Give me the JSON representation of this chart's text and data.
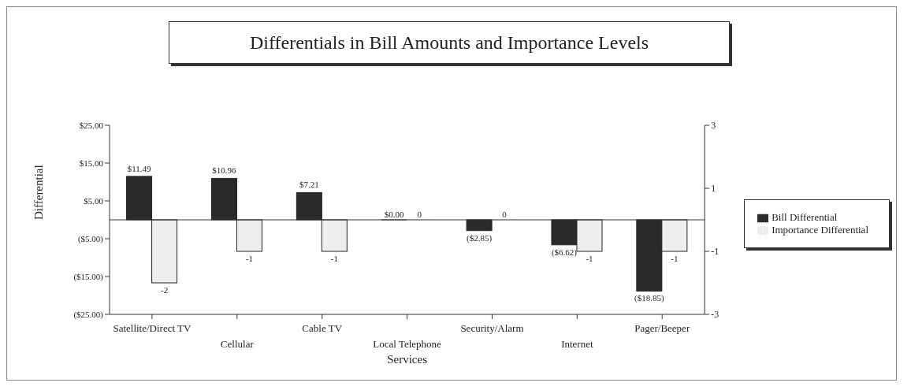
{
  "chart_data": {
    "type": "bar",
    "title": "Differentials in Bill Amounts and Importance Levels",
    "xlabel": "Services",
    "ylabel": "Differential",
    "categories": [
      "Satellite/Direct TV",
      "Cellular",
      "Cable TV",
      "Local Telephone",
      "Security/Alarm",
      "Internet",
      "Pager/Beeper"
    ],
    "series": [
      {
        "name": "Bill Differential",
        "color": "#2b2b2b",
        "values": [
          11.49,
          10.96,
          7.21,
          0.0,
          -2.85,
          -6.62,
          -18.85
        ],
        "value_labels": [
          "$11.49",
          "$10.96",
          "$7.21",
          "$0.00",
          "($2.85)",
          "($6.62)",
          "($18.85)"
        ]
      },
      {
        "name": "Importance Differential",
        "color": "#eeeeee",
        "axis": "y2",
        "values": [
          -2,
          -1,
          -1,
          0,
          0,
          -1,
          -1
        ],
        "value_labels": [
          "-2",
          "-1",
          "-1",
          "0",
          "0",
          "-1",
          "-1"
        ]
      }
    ],
    "ylim": [
      -25,
      25
    ],
    "yticks": [
      {
        "value": 25,
        "label": "$25.00"
      },
      {
        "value": 15,
        "label": "$15.00"
      },
      {
        "value": 5,
        "label": "$5.00"
      },
      {
        "value": -5,
        "label": "($5.00)"
      },
      {
        "value": -15,
        "label": "($15.00)"
      },
      {
        "value": -25,
        "label": "($25.00)"
      }
    ],
    "y2lim": [
      -3,
      3
    ],
    "y2ticks": [
      3,
      1,
      -1,
      -3
    ],
    "grid": false,
    "legend": "right"
  }
}
